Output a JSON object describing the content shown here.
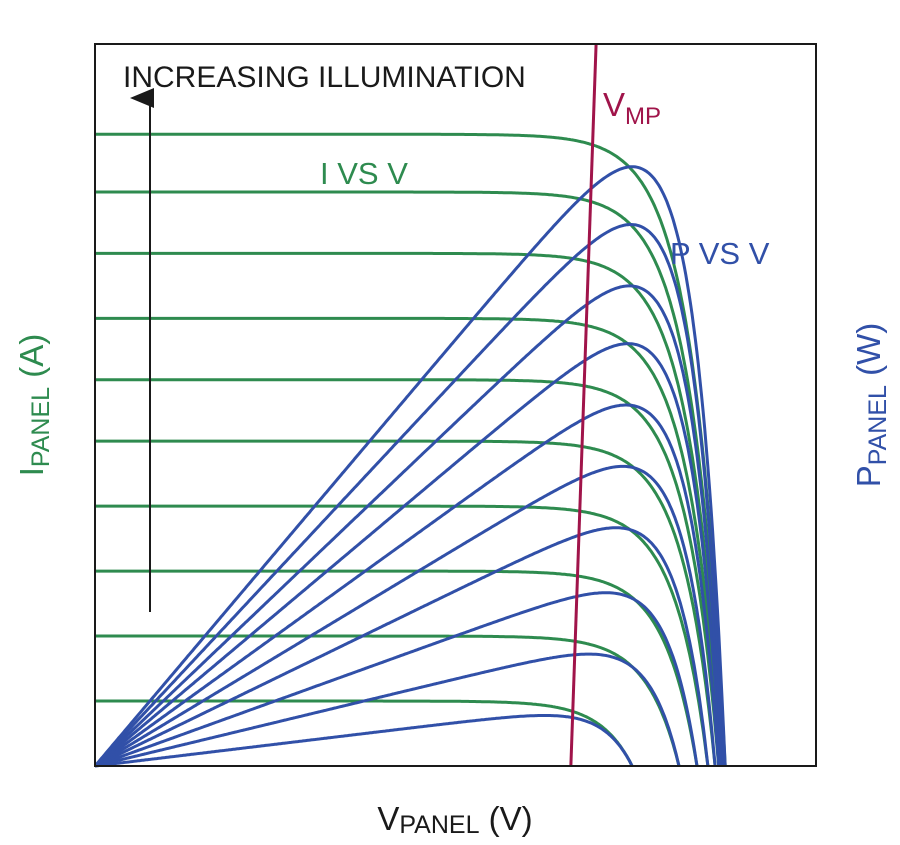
{
  "chart_data": {
    "type": "line",
    "title": "",
    "xlabel": {
      "main": "V",
      "sub": "PANEL",
      "unit": " (V)"
    },
    "ylabel_left": {
      "main": "I",
      "sub": "PANEL",
      "unit": " (A)"
    },
    "ylabel_right": {
      "main": "P",
      "sub": "PANEL",
      "unit": " (W)"
    },
    "x_ticks": "none",
    "y_ticks": "none",
    "grid": false,
    "legend": "none",
    "annotations": {
      "illumination": "INCREASING ILLUMINATION",
      "iv_label": "I VS V",
      "pv_label": "P VS V",
      "vmp": {
        "main": "V",
        "sub": "MP"
      }
    },
    "colors": {
      "iv": "#2e8b4f",
      "pv": "#3150a8",
      "vmp": "#a0144a",
      "frame": "#1a1a1a",
      "arrow": "#1a1a1a"
    },
    "series_model": {
      "count": 10,
      "description_units": "relative (0-1 of axis range)",
      "Isc": [
        0.09,
        0.18,
        0.27,
        0.36,
        0.45,
        0.535,
        0.62,
        0.71,
        0.795,
        0.875
      ],
      "Voc": [
        0.745,
        0.81,
        0.835,
        0.85,
        0.86,
        0.865,
        0.868,
        0.87,
        0.872,
        0.874
      ],
      "Pmax": [
        0.07,
        0.155,
        0.24,
        0.33,
        0.415,
        0.5,
        0.585,
        0.665,
        0.75,
        0.83
      ],
      "Vmp": [
        0.66,
        0.67,
        0.68,
        0.685,
        0.69,
        0.695,
        0.7,
        0.7,
        0.7,
        0.7
      ]
    }
  }
}
